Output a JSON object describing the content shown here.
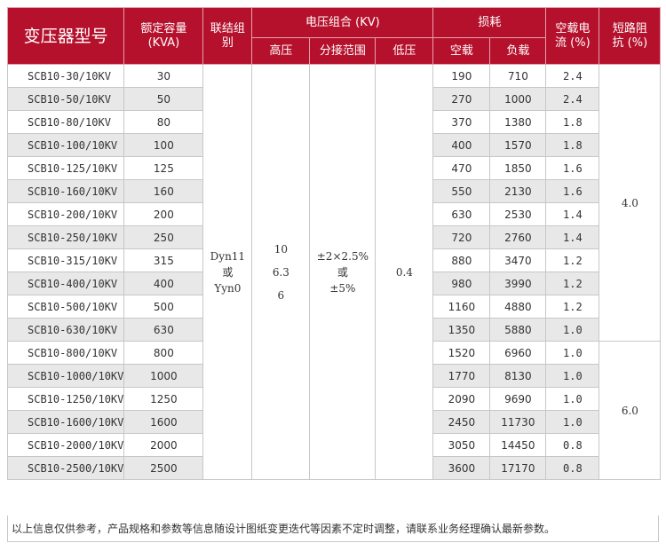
{
  "headers": {
    "model": "变压器型号",
    "capacity": "额定容量",
    "capacity_unit": "(KVA)",
    "connection_1": "联结组",
    "connection_2": "别",
    "voltage_group": "电压组合 (KV)",
    "hv": "高压",
    "tap_range": "分接范围",
    "lv": "低压",
    "loss": "损耗",
    "no_load": "空载",
    "load": "负载",
    "no_load_current_1": "空载电",
    "no_load_current_2": "流 (%)",
    "short_circuit_1": "短路阻",
    "short_circuit_2": "抗 (%)"
  },
  "merged": {
    "connection_line1": "Dyn11",
    "connection_line2": "或",
    "connection_line3": "Yyn0",
    "hv_line1": "10",
    "hv_line2": "6.3",
    "hv_line3": "6",
    "tap_line1": "±2×2.5%",
    "tap_line2": "或",
    "tap_line3": "±5%",
    "lv": "0.4",
    "impedance_group1": "4.0",
    "impedance_group2": "6.0"
  },
  "rows": [
    {
      "model": "SCB10-30/10KV",
      "capacity": "30",
      "no_load": "190",
      "load": "710",
      "current": "2.4"
    },
    {
      "model": "SCB10-50/10KV",
      "capacity": "50",
      "no_load": "270",
      "load": "1000",
      "current": "2.4"
    },
    {
      "model": "SCB10-80/10KV",
      "capacity": "80",
      "no_load": "370",
      "load": "1380",
      "current": "1.8"
    },
    {
      "model": "SCB10-100/10KV",
      "capacity": "100",
      "no_load": "400",
      "load": "1570",
      "current": "1.8"
    },
    {
      "model": "SCB10-125/10KV",
      "capacity": "125",
      "no_load": "470",
      "load": "1850",
      "current": "1.6"
    },
    {
      "model": "SCB10-160/10KV",
      "capacity": "160",
      "no_load": "550",
      "load": "2130",
      "current": "1.6"
    },
    {
      "model": "SCB10-200/10KV",
      "capacity": "200",
      "no_load": "630",
      "load": "2530",
      "current": "1.4"
    },
    {
      "model": "SCB10-250/10KV",
      "capacity": "250",
      "no_load": "720",
      "load": "2760",
      "current": "1.4"
    },
    {
      "model": "SCB10-315/10KV",
      "capacity": "315",
      "no_load": "880",
      "load": "3470",
      "current": "1.2"
    },
    {
      "model": "SCB10-400/10KV",
      "capacity": "400",
      "no_load": "980",
      "load": "3990",
      "current": "1.2"
    },
    {
      "model": "SCB10-500/10KV",
      "capacity": "500",
      "no_load": "1160",
      "load": "4880",
      "current": "1.2"
    },
    {
      "model": "SCB10-630/10KV",
      "capacity": "630",
      "no_load": "1350",
      "load": "5880",
      "current": "1.0"
    },
    {
      "model": "SCB10-800/10KV",
      "capacity": "800",
      "no_load": "1520",
      "load": "6960",
      "current": "1.0"
    },
    {
      "model": "SCB10-1000/10KV",
      "capacity": "1000",
      "no_load": "1770",
      "load": "8130",
      "current": "1.0"
    },
    {
      "model": "SCB10-1250/10KV",
      "capacity": "1250",
      "no_load": "2090",
      "load": "9690",
      "current": "1.0"
    },
    {
      "model": "SCB10-1600/10KV",
      "capacity": "1600",
      "no_load": "2450",
      "load": "11730",
      "current": "1.0"
    },
    {
      "model": "SCB10-2000/10KV",
      "capacity": "2000",
      "no_load": "3050",
      "load": "14450",
      "current": "0.8"
    },
    {
      "model": "SCB10-2500/10KV",
      "capacity": "2500",
      "no_load": "3600",
      "load": "17170",
      "current": "0.8"
    }
  ],
  "footnote": "以上信息仅供参考，产品规格和参数等信息随设计图纸变更迭代等因素不定时调整，请联系业务经理确认最新参数。",
  "colors": {
    "header_bg": "#b5112c",
    "alt_row": "#e8e8e8",
    "border": "#c7c7c7"
  }
}
